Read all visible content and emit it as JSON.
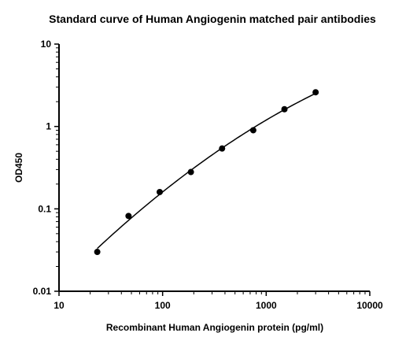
{
  "chart_data": {
    "type": "scatter",
    "title": "Standard curve of Human Angiogenin matched pair antibodies",
    "xlabel": "Recombinant Human Angiogenin protein (pg/ml)",
    "ylabel": "OD450",
    "x_scale": "log",
    "y_scale": "log",
    "xlim": [
      10,
      10000
    ],
    "ylim": [
      0.01,
      10
    ],
    "x_ticks": [
      "10",
      "100",
      "1000",
      "10000"
    ],
    "y_ticks": [
      "0.01",
      "0.1",
      "1",
      "10"
    ],
    "grid": false,
    "fit_curve": true,
    "series": [
      {
        "x": [
          23.4,
          46.9,
          93.8,
          187.5,
          375,
          750,
          1500,
          3000
        ],
        "y": [
          0.03,
          0.082,
          0.16,
          0.28,
          0.54,
          0.9,
          1.62,
          2.6
        ]
      }
    ]
  }
}
